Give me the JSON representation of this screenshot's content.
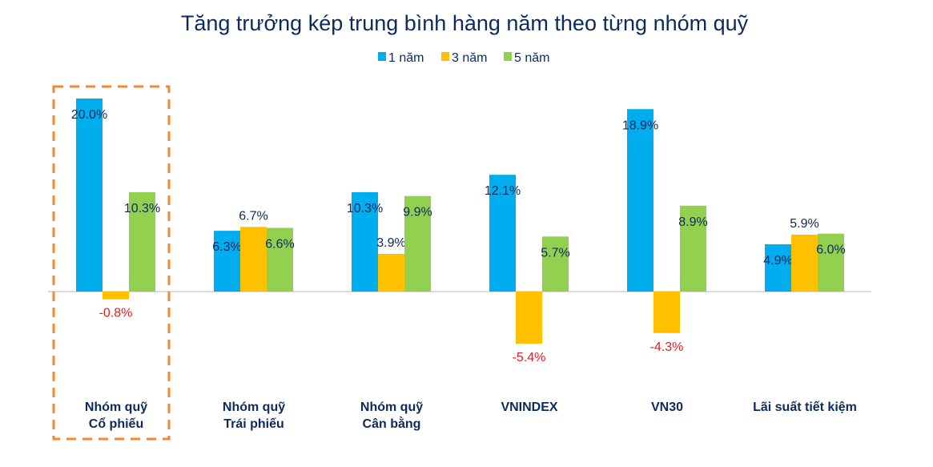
{
  "chart_data": {
    "type": "bar",
    "title": "Tăng trưởng kép trung bình hàng năm theo từng nhóm quỹ",
    "categories": [
      [
        "Nhóm quỹ",
        "Cổ phiếu"
      ],
      [
        "Nhóm quỹ",
        "Trái phiếu"
      ],
      [
        "Nhóm quỹ",
        "Cân bằng"
      ],
      [
        "VNINDEX"
      ],
      [
        "VN30"
      ],
      [
        "Lãi suất tiết kiệm"
      ]
    ],
    "series": [
      {
        "name": "1 năm",
        "color": "#00AEEF",
        "values": [
          20.0,
          6.3,
          10.3,
          12.1,
          18.9,
          4.9
        ]
      },
      {
        "name": "3 năm",
        "color": "#FFC000",
        "values": [
          -0.8,
          6.7,
          3.9,
          -5.4,
          -4.3,
          5.9
        ]
      },
      {
        "name": "5 năm",
        "color": "#92D050",
        "values": [
          10.3,
          6.6,
          9.9,
          5.7,
          8.9,
          6.0
        ]
      }
    ],
    "value_format": "%",
    "legend": "top-center",
    "grid": false,
    "highlighted_category": "Nhóm quỹ Cổ phiếu",
    "highlight_color": "#F08A30",
    "label_color": "#0D2A5C",
    "negative_label_color": "#E02020"
  }
}
